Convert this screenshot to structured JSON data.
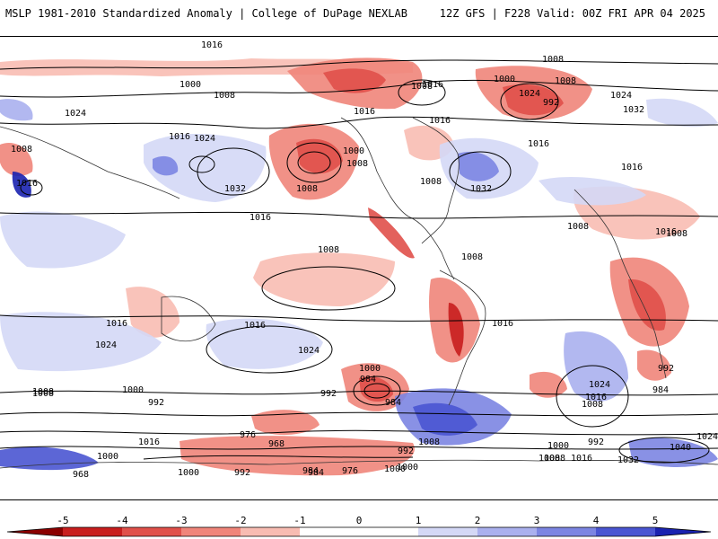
{
  "header": {
    "left_title": "MSLP 1981-2010 Standardized Anomaly | College of DuPage NEXLAB",
    "right_title": "12Z GFS | F228 Valid: 00Z FRI APR 04 2025"
  },
  "colorbar": {
    "ticks": [
      "-5",
      "-4",
      "-3",
      "-2",
      "-1",
      "0",
      "1",
      "2",
      "3",
      "4",
      "5"
    ],
    "colors": {
      "n5": "#8b0000",
      "n4": "#c81e1e",
      "n3": "#e0504a",
      "n2": "#f0857a",
      "n1": "#f8bcb2",
      "zero": "#ffffff",
      "p1": "#d4d8f6",
      "p2": "#aab0ee",
      "p3": "#7c85e2",
      "p4": "#4a55d2",
      "p5": "#1a22b0"
    }
  },
  "map": {
    "isobar_labels": [
      "1000",
      "1008",
      "1008",
      "1016",
      "1008",
      "1016",
      "1024",
      "1016",
      "1024",
      "1032",
      "1016",
      "1008",
      "1016",
      "1000",
      "1008",
      "1008",
      "1016",
      "1008",
      "1032",
      "1024",
      "1016",
      "1008",
      "1000",
      "992",
      "1032",
      "1024",
      "1016",
      "1008",
      "1016",
      "1008",
      "1008",
      "1016",
      "1024",
      "1016",
      "1016",
      "1024",
      "1008",
      "1000",
      "992",
      "984",
      "984",
      "1000",
      "992",
      "1008",
      "1016",
      "976",
      "968",
      "1000",
      "992",
      "984",
      "976",
      "1000",
      "984",
      "1000",
      "968",
      "992",
      "1000",
      "1016",
      "1008",
      "1008",
      "1000",
      "1024",
      "1016",
      "1008",
      "984",
      "992",
      "1040",
      "1032",
      "1024",
      "992",
      "1008",
      "1016",
      "1008"
    ]
  }
}
